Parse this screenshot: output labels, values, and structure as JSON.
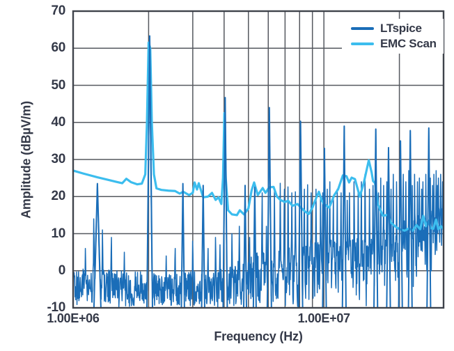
{
  "figure": {
    "background": "#ffffff",
    "text_color": "#343948",
    "grid_color": "#55585f",
    "border_color": "#3f434b"
  },
  "axes": {
    "x_label": "Frequency (Hz)",
    "y_label": "Amplitude (dBµV/m)",
    "x_scale": "log",
    "x_range_hz": [
      1000000,
      30000000
    ],
    "y_range_db": [
      -10,
      70
    ],
    "x_ticks": [
      "1.00E+06",
      "1.00E+07"
    ],
    "x_tick_values_hz": [
      1000000,
      10000000
    ],
    "y_ticks": [
      "70",
      "60",
      "50",
      "40",
      "30",
      "20",
      "10",
      "0",
      "-10"
    ],
    "grid": "on"
  },
  "legend": [
    {
      "label": "LTspice",
      "color": "#1a6db8"
    },
    {
      "label": "EMC Scan",
      "color": "#3cbdee"
    }
  ],
  "chart_data": {
    "type": "line",
    "title": "",
    "xlabel": "Frequency (Hz)",
    "ylabel": "Amplitude (dBµV/m)",
    "x_scale": "log",
    "xlim_hz": [
      1000000,
      30000000
    ],
    "ylim_db": [
      -10,
      70
    ],
    "legend_position": "top-right",
    "grid": true,
    "series": [
      {
        "name": "LTspice",
        "color": "#1a6db8",
        "style": "noisy-spectrum",
        "peaks_MHz_dB": [
          [
            1.25,
            23.5,
            5
          ],
          [
            2.02,
            63.3,
            4
          ],
          [
            2.74,
            23.5,
            2.2
          ],
          [
            3.3,
            23,
            2.2
          ],
          [
            4.04,
            46.7,
            3
          ],
          [
            4.85,
            23,
            2
          ],
          [
            5.3,
            22.5,
            2
          ],
          [
            6.06,
            44,
            3
          ],
          [
            8.07,
            40.3,
            3
          ],
          [
            10.05,
            33,
            2.6
          ],
          [
            12.05,
            39,
            2.6
          ],
          [
            16.1,
            38.2,
            2.6
          ],
          [
            18.1,
            33.2,
            2.6
          ],
          [
            20.2,
            35,
            2.6
          ],
          [
            22.1,
            37.8,
            2.6
          ],
          [
            26.2,
            38.5,
            2.6
          ]
        ],
        "spurs_MHz_dB": [
          [
            1.12,
            6
          ],
          [
            1.21,
            14
          ],
          [
            1.31,
            11
          ],
          [
            1.42,
            9
          ],
          [
            1.6,
            5
          ],
          [
            2.35,
            4
          ],
          [
            2.55,
            6
          ],
          [
            3.0,
            8
          ],
          [
            3.45,
            6
          ],
          [
            3.7,
            9
          ],
          [
            3.85,
            7
          ],
          [
            4.3,
            10
          ],
          [
            4.6,
            12
          ],
          [
            5.05,
            9
          ],
          [
            5.67,
            21
          ],
          [
            5.9,
            12
          ],
          [
            6.35,
            22
          ],
          [
            6.7,
            23.6
          ],
          [
            6.95,
            22
          ],
          [
            7.2,
            22.6
          ],
          [
            7.45,
            21
          ],
          [
            7.7,
            21.3
          ],
          [
            8.35,
            22
          ],
          [
            8.6,
            23.2
          ],
          [
            8.9,
            21
          ],
          [
            9.3,
            22
          ],
          [
            9.7,
            20.4
          ],
          [
            9.9,
            21
          ],
          [
            10.3,
            22
          ],
          [
            10.55,
            24
          ],
          [
            10.9,
            20
          ],
          [
            11.3,
            22
          ],
          [
            11.7,
            21
          ],
          [
            12.4,
            19
          ],
          [
            12.65,
            21
          ],
          [
            13.2,
            24
          ],
          [
            13.7,
            22
          ],
          [
            14.1,
            24
          ],
          [
            14.6,
            26
          ],
          [
            15.2,
            22
          ],
          [
            15.7,
            23
          ],
          [
            16.5,
            21
          ],
          [
            16.85,
            25
          ],
          [
            17.3,
            23
          ],
          [
            17.8,
            24
          ],
          [
            18.5,
            22
          ],
          [
            18.9,
            26
          ],
          [
            19.5,
            24
          ],
          [
            20.7,
            26
          ],
          [
            21.2,
            24
          ],
          [
            21.8,
            27
          ],
          [
            22.5,
            23
          ],
          [
            23.0,
            26
          ],
          [
            23.6,
            24
          ],
          [
            24.0,
            25
          ],
          [
            24.5,
            22
          ],
          [
            24.8,
            24
          ],
          [
            25.5,
            26
          ],
          [
            26.6,
            25
          ],
          [
            27.1,
            23
          ],
          [
            27.45,
            26
          ],
          [
            28.0,
            27
          ],
          [
            28.35,
            23
          ],
          [
            28.6,
            25
          ],
          [
            29.2,
            26
          ],
          [
            29.7,
            24
          ]
        ],
        "noise_floor_hi_MHz_dB": [
          [
            1.0,
            1
          ],
          [
            1.5,
            0
          ],
          [
            2.0,
            0
          ],
          [
            2.5,
            -1
          ],
          [
            3.0,
            0
          ],
          [
            3.5,
            -1
          ],
          [
            4.0,
            1
          ],
          [
            4.5,
            3
          ],
          [
            5.0,
            4
          ],
          [
            5.5,
            5
          ],
          [
            6.0,
            5
          ],
          [
            6.5,
            6
          ],
          [
            7.0,
            6
          ],
          [
            7.5,
            7
          ],
          [
            8.0,
            7
          ],
          [
            8.5,
            8
          ],
          [
            9.0,
            8
          ],
          [
            9.5,
            8
          ],
          [
            10.0,
            8
          ],
          [
            11,
            8.5
          ],
          [
            12,
            9
          ],
          [
            13,
            9.5
          ],
          [
            14,
            10
          ],
          [
            15,
            10
          ],
          [
            16,
            11
          ],
          [
            17,
            11.5
          ],
          [
            18,
            12
          ],
          [
            19,
            12.5
          ],
          [
            20,
            13
          ],
          [
            21,
            13.5
          ],
          [
            22,
            14
          ],
          [
            23,
            14.5
          ],
          [
            24,
            15
          ],
          [
            25,
            15.5
          ],
          [
            26,
            16
          ],
          [
            27,
            16.5
          ],
          [
            28,
            17
          ],
          [
            29,
            17.5
          ],
          [
            30,
            18
          ]
        ],
        "noise_floor_lo_dB": -10
      },
      {
        "name": "EMC Scan",
        "color": "#3cbdee",
        "style": "smooth-trace",
        "points_MHz_dB": [
          [
            1.0,
            27
          ],
          [
            1.1,
            26.2
          ],
          [
            1.25,
            25.2
          ],
          [
            1.4,
            24.4
          ],
          [
            1.5,
            23.9
          ],
          [
            1.57,
            23.6
          ],
          [
            1.63,
            24.8
          ],
          [
            1.7,
            23.9
          ],
          [
            1.8,
            23.3
          ],
          [
            1.88,
            23.5
          ],
          [
            1.94,
            26
          ],
          [
            1.97,
            40
          ],
          [
            2.0,
            61.5
          ],
          [
            2.03,
            60
          ],
          [
            2.06,
            40
          ],
          [
            2.1,
            26
          ],
          [
            2.15,
            22.2
          ],
          [
            2.25,
            21.8
          ],
          [
            2.4,
            21.6
          ],
          [
            2.55,
            21.5
          ],
          [
            2.66,
            20.8
          ],
          [
            2.75,
            21.3
          ],
          [
            2.9,
            20.4
          ],
          [
            3.0,
            21
          ],
          [
            3.05,
            23.8
          ],
          [
            3.12,
            21.9
          ],
          [
            3.17,
            23.6
          ],
          [
            3.3,
            19.8
          ],
          [
            3.45,
            20.0
          ],
          [
            3.58,
            21
          ],
          [
            3.7,
            19.1
          ],
          [
            3.8,
            19.8
          ],
          [
            3.9,
            18
          ],
          [
            3.96,
            25
          ],
          [
            4.01,
            42.5
          ],
          [
            4.06,
            25
          ],
          [
            4.15,
            16.3
          ],
          [
            4.3,
            15.2
          ],
          [
            4.5,
            15
          ],
          [
            4.62,
            16.3
          ],
          [
            4.8,
            15.2
          ],
          [
            5.0,
            16.8
          ],
          [
            5.15,
            21.7
          ],
          [
            5.27,
            23.8
          ],
          [
            5.45,
            20.4
          ],
          [
            5.7,
            22.3
          ],
          [
            5.85,
            21
          ],
          [
            6.05,
            22.5
          ],
          [
            6.3,
            22.6
          ],
          [
            6.5,
            20
          ],
          [
            6.7,
            19.1
          ],
          [
            7.0,
            18.5
          ],
          [
            7.2,
            18.9
          ],
          [
            7.5,
            17.5
          ],
          [
            7.85,
            18
          ],
          [
            8.1,
            17
          ],
          [
            8.4,
            16
          ],
          [
            8.7,
            15.3
          ],
          [
            9.0,
            17
          ],
          [
            9.3,
            19.5
          ],
          [
            9.55,
            21.3
          ],
          [
            9.8,
            19
          ],
          [
            10.0,
            18
          ],
          [
            10.5,
            17
          ],
          [
            11.0,
            20.4
          ],
          [
            11.4,
            22
          ],
          [
            11.9,
            25.7
          ],
          [
            12.3,
            25.5
          ],
          [
            12.6,
            23.8
          ],
          [
            12.9,
            25.1
          ],
          [
            13.3,
            24.7
          ],
          [
            13.9,
            20
          ],
          [
            14.4,
            23.5
          ],
          [
            15.1,
            29.8
          ],
          [
            15.5,
            26.5
          ],
          [
            15.7,
            24.2
          ],
          [
            16.0,
            23.6
          ],
          [
            16.4,
            18
          ],
          [
            17.2,
            14.8
          ],
          [
            18.0,
            15.1
          ],
          [
            18.5,
            13
          ],
          [
            19.2,
            12
          ],
          [
            20.0,
            11.2
          ],
          [
            21.0,
            10.8
          ],
          [
            21.8,
            11.4
          ],
          [
            22.6,
            10.8
          ],
          [
            23.4,
            12.3
          ],
          [
            24.2,
            11.2
          ],
          [
            24.9,
            14.8
          ],
          [
            25.5,
            12
          ],
          [
            26.1,
            13.5
          ],
          [
            26.7,
            11.5
          ],
          [
            27.3,
            11.3
          ],
          [
            28.0,
            13.8
          ],
          [
            28.6,
            11.2
          ],
          [
            29.3,
            12
          ],
          [
            30.0,
            11.2
          ]
        ]
      }
    ]
  }
}
